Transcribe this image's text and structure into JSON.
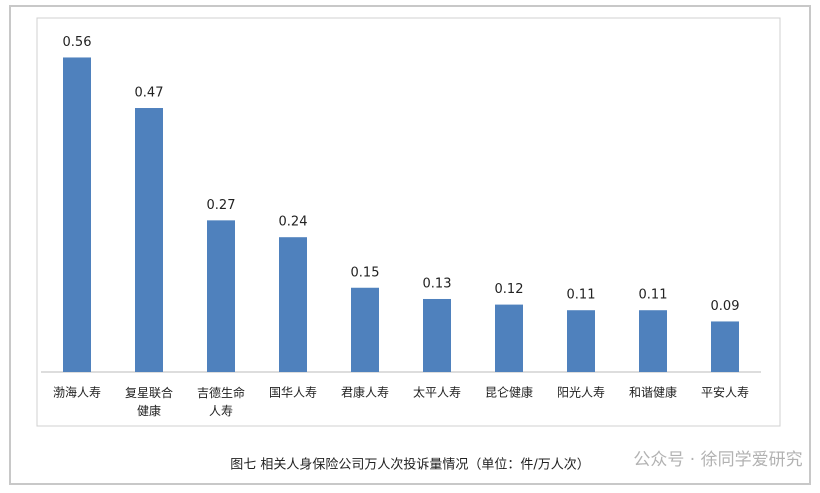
{
  "chart_data": {
    "type": "bar",
    "caption": "图七  相关人身保险公司万人次投诉量情况（单位：件/万人次）",
    "watermark": "公众号 · 徐同学爱研究",
    "categories": [
      "渤海人寿",
      "复星联合健康",
      "吉德生命人寿",
      "国华人寿",
      "君康人寿",
      "太平人寿",
      "昆仑健康",
      "阳光人寿",
      "和谐健康",
      "平安人寿"
    ],
    "values": [
      0.56,
      0.47,
      0.27,
      0.24,
      0.15,
      0.13,
      0.12,
      0.11,
      0.11,
      0.09
    ],
    "color": "#4f81bd",
    "ylim": [
      0,
      0.6
    ]
  }
}
